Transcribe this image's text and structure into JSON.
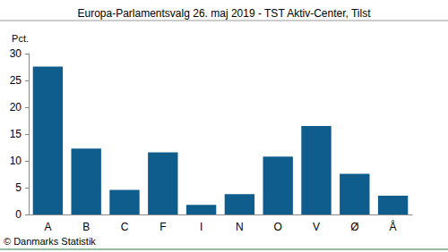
{
  "chart_data": {
    "type": "bar",
    "title": "Europa-Parlamentsvalg 26. maj 2019 - TST Aktiv-Center, Tilst",
    "ylabel": "Pct.",
    "source": "© Danmarks Statistik",
    "categories": [
      "A",
      "B",
      "C",
      "F",
      "I",
      "N",
      "O",
      "V",
      "Ø",
      "Å"
    ],
    "values": [
      27.6,
      12.3,
      4.6,
      11.6,
      1.8,
      3.8,
      10.8,
      16.5,
      7.6,
      3.5
    ],
    "color": "#0f5d8c",
    "ylim": [
      0,
      30
    ],
    "yticks": [
      0,
      5,
      10,
      15,
      20,
      25,
      30
    ],
    "grid": false
  }
}
